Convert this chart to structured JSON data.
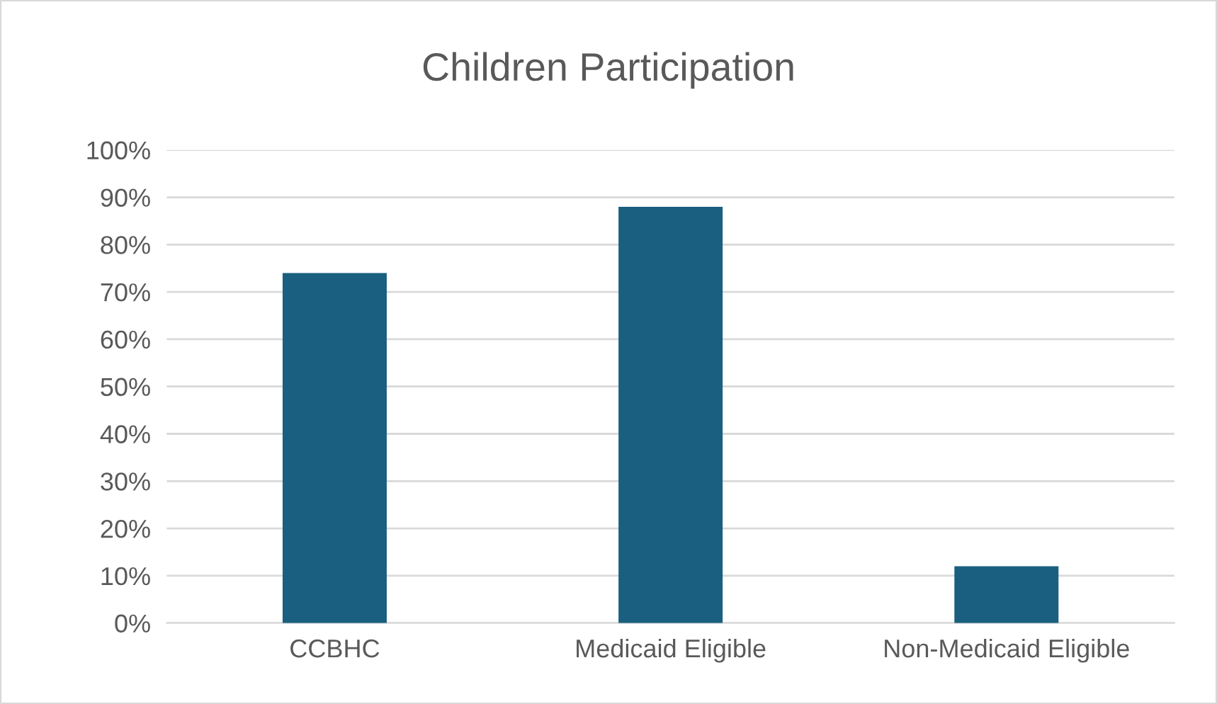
{
  "chart_data": {
    "type": "bar",
    "title": "Children Participation",
    "categories": [
      "CCBHC",
      "Medicaid Eligible",
      "Non-Medicaid Eligible"
    ],
    "values": [
      74,
      88,
      12
    ],
    "color": "#1a5f7f",
    "ylim": [
      0,
      100
    ],
    "yticks": [
      {
        "value": 0,
        "label": "0%"
      },
      {
        "value": 10,
        "label": "10%"
      },
      {
        "value": 20,
        "label": "20%"
      },
      {
        "value": 30,
        "label": "30%"
      },
      {
        "value": 40,
        "label": "40%"
      },
      {
        "value": 50,
        "label": "50%"
      },
      {
        "value": 60,
        "label": "60%"
      },
      {
        "value": 70,
        "label": "70%"
      },
      {
        "value": 80,
        "label": "80%"
      },
      {
        "value": 90,
        "label": "90%"
      },
      {
        "value": 100,
        "label": "100%"
      }
    ],
    "grid": "y",
    "legend": false
  }
}
